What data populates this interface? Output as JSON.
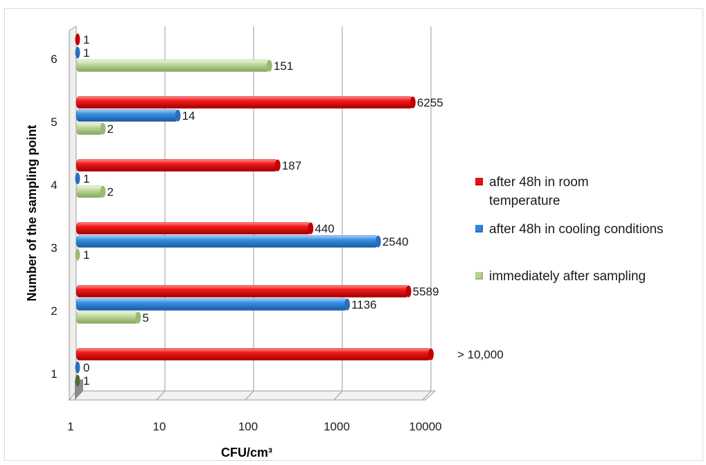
{
  "chart_data": {
    "type": "bar",
    "orientation": "horizontal",
    "xscale": "log",
    "xlim": [
      1,
      10000
    ],
    "xlabel": "CFU/cm³",
    "ylabel": "Number of the sampling point",
    "x_ticks": [
      "1",
      "10",
      "100",
      "1000",
      "10000"
    ],
    "categories": [
      "1",
      "2",
      "3",
      "4",
      "5",
      "6"
    ],
    "legend_position": "right",
    "series": [
      {
        "name": "after 48h in room temperature",
        "color": "#e81010",
        "values": [
          12000,
          5589,
          440,
          187,
          6255,
          1
        ],
        "labels": [
          "> 10,000",
          "5589",
          "440",
          "187",
          "6255",
          "1"
        ]
      },
      {
        "name": "after 48h in cooling conditions",
        "color": "#2f86d8",
        "values": [
          0,
          1136,
          2540,
          1,
          14,
          1
        ],
        "labels": [
          "0",
          "1136",
          "2540",
          "1",
          "14",
          "1"
        ]
      },
      {
        "name": "immediately after sampling",
        "color": "#b7d38f",
        "values": [
          1,
          5,
          1,
          2,
          2,
          151
        ],
        "labels": [
          "1",
          "5",
          "1",
          "2",
          "2",
          "151"
        ]
      }
    ]
  }
}
